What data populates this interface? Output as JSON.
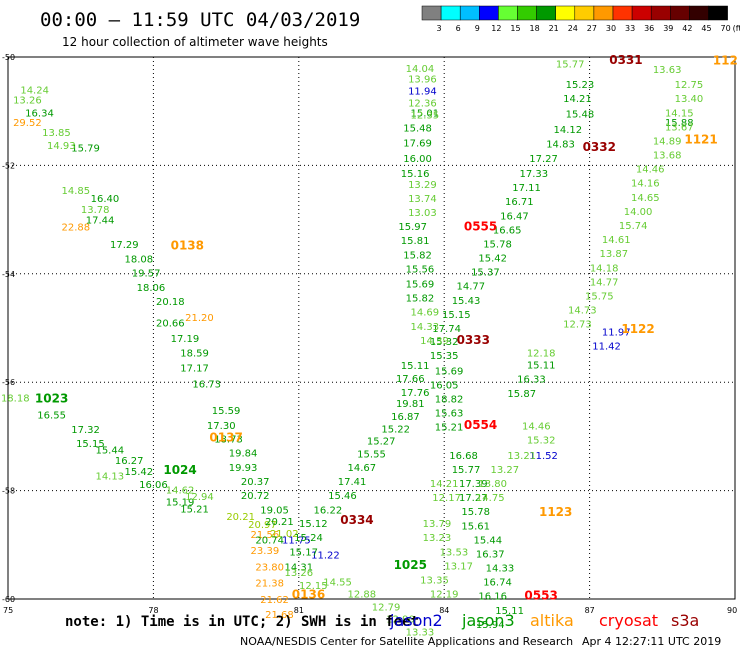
{
  "header": {
    "title": "00:00 – 11:59 UTC 04/03/2019",
    "subtitle": "12 hour collection of altimeter wave heights"
  },
  "legend_scale": {
    "labels": [
      "3",
      "6",
      "9",
      "12",
      "15",
      "18",
      "21",
      "24",
      "27",
      "30",
      "33",
      "36",
      "39",
      "42",
      "45",
      "70",
      "(ft)"
    ],
    "colors": [
      "#808080",
      "#00ffff",
      "#00bfff",
      "#0000ff",
      "#66ff33",
      "#33cc00",
      "#009900",
      "#ffff00",
      "#ffcc00",
      "#ff9900",
      "#ff3300",
      "#cc0000",
      "#990000",
      "#660000",
      "#330000",
      "#000000"
    ]
  },
  "footer": {
    "note": "note: 1) Time is in UTC; 2) SWH is in feet",
    "satellites": [
      {
        "name": "jason2",
        "color": "#0000cc"
      },
      {
        "name": "jason3",
        "color": "#009900"
      },
      {
        "name": "altika",
        "color": "#ff9900"
      },
      {
        "name": "cryosat",
        "color": "#ff0000"
      },
      {
        "name": "s3a",
        "color": "#990000"
      }
    ],
    "credit": "NOAA/NESDIS Center for Satellite Applications and Research",
    "timestamp": "Apr  4 12:27:11 UTC 2019"
  },
  "chart_data": {
    "type": "scatter",
    "xlim": [
      75,
      90
    ],
    "ylim": [
      -60,
      -50
    ],
    "x_ticks": [
      75,
      78,
      81,
      84,
      87,
      90
    ],
    "y_ticks": [
      -50,
      -52,
      -54,
      -56,
      -58,
      -60
    ],
    "y_tick_labels": [
      "-50",
      "-52",
      "-54",
      "-56",
      "-58",
      "-60"
    ],
    "grid": true,
    "time_labels": [
      {
        "text": "0138",
        "x": 78.7,
        "y": -53.46,
        "color": "#ff9900"
      },
      {
        "text": "0137",
        "x": 79.5,
        "y": -57.0,
        "color": "#ff9900"
      },
      {
        "text": "0136",
        "x": 81.2,
        "y": -59.9,
        "color": "#ff9900"
      },
      {
        "text": "1023",
        "x": 75.9,
        "y": -56.28,
        "color": "#009900"
      },
      {
        "text": "1024",
        "x": 78.55,
        "y": -57.6,
        "color": "#009900"
      },
      {
        "text": "1025",
        "x": 83.3,
        "y": -59.35,
        "color": "#009900"
      },
      {
        "text": "0555",
        "x": 84.75,
        "y": -53.11,
        "color": "#ff0000"
      },
      {
        "text": "0554",
        "x": 84.75,
        "y": -56.77,
        "color": "#ff0000"
      },
      {
        "text": "0553",
        "x": 86.0,
        "y": -59.92,
        "color": "#ff0000"
      },
      {
        "text": "0333",
        "x": 84.6,
        "y": -55.2,
        "color": "#990000"
      },
      {
        "text": "0334",
        "x": 82.2,
        "y": -58.52,
        "color": "#990000"
      },
      {
        "text": "0332",
        "x": 87.2,
        "y": -51.64,
        "color": "#990000"
      },
      {
        "text": "0331",
        "x": 87.75,
        "y": -50.04,
        "color": "#990000"
      },
      {
        "text": "1123",
        "x": 86.3,
        "y": -58.38,
        "color": "#ff9900"
      },
      {
        "text": "1122",
        "x": 88.0,
        "y": -55.0,
        "color": "#ff9900"
      },
      {
        "text": "1121",
        "x": 89.3,
        "y": -51.5,
        "color": "#ff9900"
      },
      {
        "text": "112",
        "x": 89.8,
        "y": -50.05,
        "color": "#ff9900"
      }
    ],
    "series": [
      {
        "name": "altika",
        "color": "#ff9900",
        "points": [
          [
            75.4,
            -51.2,
            "29.52"
          ],
          [
            76.4,
            -53.13,
            "22.88"
          ],
          [
            78.95,
            -54.8,
            "21.20"
          ],
          [
            80.3,
            -58.8,
            "21.56"
          ],
          [
            80.3,
            -59.1,
            "23.39"
          ],
          [
            80.4,
            -59.4,
            "23.80"
          ],
          [
            80.4,
            -59.7,
            "21.38"
          ],
          [
            80.5,
            -60.0,
            "21.62"
          ],
          [
            80.6,
            -60.28,
            "21.68"
          ]
        ]
      },
      {
        "name": "altika-light",
        "color": "#99cc00",
        "points": [
          [
            79.8,
            -58.47,
            "20.21"
          ],
          [
            80.25,
            -58.62,
            "20.97"
          ],
          [
            80.7,
            -58.78,
            "21.02"
          ]
        ]
      },
      {
        "name": "jason2",
        "color": "#0000cc",
        "points": [
          [
            83.55,
            -50.62,
            "11.94"
          ],
          [
            80.95,
            -58.9,
            "11.75"
          ],
          [
            81.55,
            -59.18,
            "11.22"
          ],
          [
            86.05,
            -57.34,
            "11.52"
          ],
          [
            87.55,
            -55.06,
            "11.97"
          ],
          [
            87.35,
            -55.32,
            "11.42"
          ]
        ]
      },
      {
        "name": "jason3-left",
        "color": "#009900",
        "points": [
          [
            75.65,
            -51.02,
            "16.34"
          ],
          [
            76.6,
            -51.67,
            "15.79"
          ],
          [
            77.0,
            -52.6,
            "16.40"
          ],
          [
            76.9,
            -53.0,
            "17.44"
          ],
          [
            77.4,
            -53.45,
            "17.29"
          ],
          [
            77.7,
            -53.72,
            "18.08"
          ],
          [
            77.85,
            -53.98,
            "19.57"
          ],
          [
            77.95,
            -54.24,
            "18.06"
          ],
          [
            78.35,
            -54.5,
            "20.18"
          ],
          [
            78.35,
            -54.9,
            "20.66"
          ],
          [
            78.65,
            -55.18,
            "17.19"
          ],
          [
            78.85,
            -55.45,
            "18.59"
          ],
          [
            78.85,
            -55.73,
            "17.17"
          ],
          [
            79.1,
            -56.02,
            "16.73"
          ],
          [
            79.5,
            -56.51,
            "15.59"
          ],
          [
            79.4,
            -56.79,
            "17.30"
          ],
          [
            79.55,
            -57.04,
            "18.73"
          ],
          [
            79.85,
            -57.3,
            "19.84"
          ],
          [
            79.85,
            -57.56,
            "19.93"
          ],
          [
            80.1,
            -57.82,
            "20.37"
          ],
          [
            80.1,
            -58.08,
            "20.72"
          ],
          [
            80.5,
            -58.35,
            "19.05"
          ],
          [
            80.6,
            -58.56,
            "20.21"
          ],
          [
            80.4,
            -58.9,
            "20.74"
          ],
          [
            75.9,
            -56.6,
            "16.55"
          ],
          [
            76.6,
            -56.86,
            "17.32"
          ],
          [
            76.7,
            -57.12,
            "15.15"
          ],
          [
            77.1,
            -57.24,
            "15.44"
          ],
          [
            77.5,
            -57.44,
            "16.27"
          ],
          [
            77.7,
            -57.64,
            "15.42"
          ],
          [
            78.0,
            -57.88,
            "16.06"
          ],
          [
            78.55,
            -58.2,
            "15.19"
          ],
          [
            78.85,
            -58.33,
            "15.21"
          ],
          [
            83.6,
            -51.02,
            "15.01"
          ],
          [
            83.45,
            -51.3,
            "15.48"
          ],
          [
            83.45,
            -51.58,
            "17.69"
          ],
          [
            83.45,
            -51.86,
            "16.00"
          ],
          [
            83.4,
            -52.14,
            "15.16"
          ],
          [
            83.35,
            -53.12,
            "15.97"
          ],
          [
            83.4,
            -53.38,
            "15.81"
          ],
          [
            83.45,
            -53.64,
            "15.82"
          ],
          [
            83.5,
            -53.9,
            "15.56"
          ],
          [
            83.5,
            -54.18,
            "15.69"
          ],
          [
            83.5,
            -54.44,
            "15.82"
          ],
          [
            83.4,
            -55.68,
            "15.11"
          ],
          [
            83.3,
            -55.92,
            "17.66"
          ],
          [
            83.4,
            -56.18,
            "17.76"
          ],
          [
            83.3,
            -56.38,
            "19.81"
          ],
          [
            83.2,
            -56.62,
            "16.87"
          ],
          [
            83.0,
            -56.85,
            "15.22"
          ],
          [
            82.7,
            -57.08,
            "15.27"
          ],
          [
            82.5,
            -57.32,
            "15.55"
          ],
          [
            82.3,
            -57.56,
            "14.67"
          ],
          [
            82.1,
            -57.82,
            "17.41"
          ],
          [
            81.9,
            -58.08,
            "15.46"
          ],
          [
            81.6,
            -58.35,
            "16.22"
          ],
          [
            81.3,
            -58.6,
            "15.12"
          ],
          [
            81.2,
            -58.86,
            "15.24"
          ],
          [
            81.1,
            -59.12,
            "15.17"
          ],
          [
            81.0,
            -59.4,
            "14.31"
          ]
        ]
      },
      {
        "name": "jason3-right",
        "color": "#009900",
        "points": [
          [
            86.8,
            -50.5,
            "15.23"
          ],
          [
            86.75,
            -50.76,
            "14.21"
          ],
          [
            86.8,
            -51.04,
            "15.48"
          ],
          [
            86.55,
            -51.33,
            "14.12"
          ],
          [
            86.4,
            -51.6,
            "14.83"
          ],
          [
            86.05,
            -51.86,
            "17.27"
          ],
          [
            85.85,
            -52.14,
            "17.33"
          ],
          [
            85.7,
            -52.4,
            "17.11"
          ],
          [
            85.55,
            -52.66,
            "16.71"
          ],
          [
            85.45,
            -52.92,
            "16.47"
          ],
          [
            85.3,
            -53.18,
            "16.65"
          ],
          [
            85.1,
            -53.44,
            "15.78"
          ],
          [
            85.0,
            -53.7,
            "15.42"
          ],
          [
            84.85,
            -53.96,
            "15.37"
          ],
          [
            84.55,
            -54.22,
            "14.77"
          ],
          [
            84.45,
            -54.48,
            "15.43"
          ],
          [
            84.25,
            -54.74,
            "15.15"
          ],
          [
            84.05,
            -55.0,
            "17.74"
          ],
          [
            84.0,
            -55.24,
            "15.32"
          ],
          [
            84.0,
            -55.5,
            "15.35"
          ],
          [
            84.1,
            -55.78,
            "15.69"
          ],
          [
            84.0,
            -56.04,
            "16.05"
          ],
          [
            84.1,
            -56.3,
            "18.82"
          ],
          [
            84.1,
            -56.56,
            "15.63"
          ],
          [
            84.1,
            -56.82,
            "15.21"
          ],
          [
            84.4,
            -57.34,
            "16.68"
          ],
          [
            84.45,
            -57.6,
            "15.77"
          ],
          [
            84.6,
            -57.86,
            "17.39"
          ],
          [
            84.6,
            -58.12,
            "17.27"
          ],
          [
            84.65,
            -58.38,
            "15.78"
          ],
          [
            84.65,
            -58.64,
            "15.61"
          ],
          [
            84.9,
            -58.9,
            "15.44"
          ],
          [
            84.95,
            -59.16,
            "16.37"
          ],
          [
            85.15,
            -59.42,
            "14.33"
          ],
          [
            85.1,
            -59.68,
            "16.74"
          ],
          [
            85.0,
            -59.94,
            "16.16"
          ],
          [
            85.35,
            -60.2,
            "15.11"
          ],
          [
            84.95,
            -60.46,
            "15.94"
          ],
          [
            85.6,
            -56.2,
            "15.87"
          ],
          [
            85.8,
            -55.93,
            "16.33"
          ],
          [
            86.0,
            -55.67,
            "15.11"
          ],
          [
            88.85,
            -51.2,
            "15.88"
          ]
        ]
      },
      {
        "name": "jason3-light",
        "color": "#66cc33",
        "points": [
          [
            75.55,
            -50.6,
            "14.24"
          ],
          [
            75.4,
            -50.78,
            "13.26"
          ],
          [
            76.0,
            -51.38,
            "13.85"
          ],
          [
            76.1,
            -51.62,
            "14.93"
          ],
          [
            76.4,
            -52.45,
            "14.85"
          ],
          [
            76.8,
            -52.8,
            "13.78"
          ],
          [
            77.1,
            -57.72,
            "14.13"
          ],
          [
            78.55,
            -57.98,
            "14.62"
          ],
          [
            78.95,
            -58.1,
            "12.94"
          ],
          [
            81.0,
            -59.5,
            "13.26"
          ],
          [
            81.3,
            -59.74,
            "12.15"
          ],
          [
            81.8,
            -59.68,
            "14.55"
          ],
          [
            82.3,
            -59.9,
            "12.88"
          ],
          [
            82.8,
            -60.14,
            "12.79"
          ],
          [
            83.1,
            -60.36,
            "12.90"
          ],
          [
            83.5,
            -60.6,
            "13.33"
          ],
          [
            83.5,
            -50.2,
            "14.04"
          ],
          [
            83.55,
            -50.4,
            "13.96"
          ],
          [
            83.55,
            -50.84,
            "12.36"
          ],
          [
            83.6,
            -51.06,
            "12.35"
          ],
          [
            83.55,
            -52.34,
            "13.29"
          ],
          [
            83.55,
            -52.6,
            "13.74"
          ],
          [
            83.55,
            -52.86,
            "13.03"
          ],
          [
            83.6,
            -54.7,
            "14.69"
          ],
          [
            83.6,
            -54.96,
            "14.33"
          ],
          [
            83.8,
            -55.22,
            "14.39"
          ],
          [
            84.0,
            -57.86,
            "14.21"
          ],
          [
            84.05,
            -58.12,
            "12.17"
          ],
          [
            83.85,
            -58.6,
            "13.79"
          ],
          [
            83.85,
            -58.86,
            "13.23"
          ],
          [
            84.2,
            -59.12,
            "13.53"
          ],
          [
            84.3,
            -59.38,
            "13.17"
          ],
          [
            83.8,
            -59.64,
            "13.35"
          ],
          [
            84.0,
            -59.9,
            "12.19"
          ],
          [
            85.25,
            -57.6,
            "13.27"
          ],
          [
            85.0,
            -57.86,
            "13.80"
          ],
          [
            84.95,
            -58.12,
            "14.75"
          ],
          [
            85.6,
            -57.34,
            "13.21"
          ],
          [
            85.9,
            -56.8,
            "14.46"
          ],
          [
            86.0,
            -57.06,
            "15.32"
          ],
          [
            88.6,
            -50.22,
            "13.63"
          ],
          [
            89.05,
            -50.5,
            "12.75"
          ],
          [
            89.05,
            -50.76,
            "13.40"
          ],
          [
            88.85,
            -51.02,
            "14.15"
          ],
          [
            88.85,
            -51.28,
            "13.67"
          ],
          [
            88.6,
            -51.54,
            "14.89"
          ],
          [
            88.6,
            -51.8,
            "13.68"
          ],
          [
            88.25,
            -52.06,
            "14.46"
          ],
          [
            88.15,
            -52.32,
            "14.16"
          ],
          [
            88.15,
            -52.58,
            "14.65"
          ],
          [
            88.0,
            -52.84,
            "14.00"
          ],
          [
            87.9,
            -53.1,
            "15.74"
          ],
          [
            87.55,
            -53.36,
            "14.61"
          ],
          [
            87.5,
            -53.62,
            "13.87"
          ],
          [
            87.3,
            -53.88,
            "14.18"
          ],
          [
            87.3,
            -54.14,
            "14.77"
          ],
          [
            87.2,
            -54.4,
            "15.75"
          ],
          [
            86.85,
            -54.66,
            "14.73"
          ],
          [
            86.75,
            -54.92,
            "12.73"
          ],
          [
            86.0,
            -55.45,
            "12.18"
          ],
          [
            75.15,
            -56.28,
            "18.18"
          ],
          [
            86.6,
            -50.12,
            "15.77"
          ]
        ]
      }
    ]
  }
}
